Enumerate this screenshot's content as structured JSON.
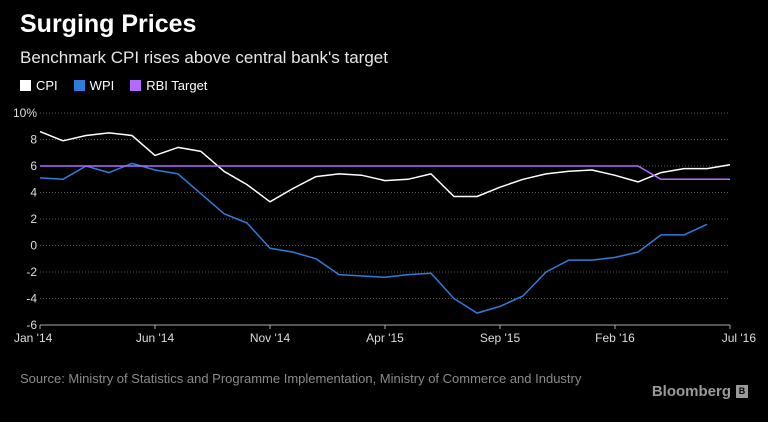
{
  "chart_data": {
    "type": "line",
    "title": "Surging Prices",
    "subtitle": "Benchmark CPI rises above central bank's target",
    "xlabel": "",
    "ylabel": "",
    "x_ticks": [
      "Jan '14",
      "Jun '14",
      "Nov '14",
      "Apr '15",
      "Sep '15",
      "Feb '16",
      "Jul '16"
    ],
    "x_range": [
      "2014-01",
      "2016-07"
    ],
    "y_ticks": [
      "10%",
      "8",
      "6",
      "4",
      "2",
      "0",
      "-2",
      "-4",
      "-6"
    ],
    "ylim": [
      -6,
      10
    ],
    "grid": true,
    "legend_position": "top-left",
    "series": [
      {
        "name": "CPI",
        "color": "#ffffff",
        "x": [
          "2014-01",
          "2014-02",
          "2014-03",
          "2014-04",
          "2014-05",
          "2014-06",
          "2014-07",
          "2014-08",
          "2014-09",
          "2014-10",
          "2014-11",
          "2014-12",
          "2015-01",
          "2015-02",
          "2015-03",
          "2015-04",
          "2015-05",
          "2015-06",
          "2015-07",
          "2015-08",
          "2015-09",
          "2015-10",
          "2015-11",
          "2015-12",
          "2016-01",
          "2016-02",
          "2016-03",
          "2016-04",
          "2016-05",
          "2016-06",
          "2016-07"
        ],
        "values": [
          8.6,
          7.9,
          8.3,
          8.5,
          8.3,
          6.8,
          7.4,
          7.1,
          5.6,
          4.6,
          3.3,
          4.3,
          5.2,
          5.4,
          5.3,
          4.9,
          5.0,
          5.4,
          3.7,
          3.7,
          4.4,
          5.0,
          5.4,
          5.6,
          5.7,
          5.3,
          4.8,
          5.5,
          5.8,
          5.8,
          6.1
        ]
      },
      {
        "name": "WPI",
        "color": "#2f7ddb",
        "x": [
          "2014-01",
          "2014-02",
          "2014-03",
          "2014-04",
          "2014-05",
          "2014-06",
          "2014-07",
          "2014-08",
          "2014-09",
          "2014-10",
          "2014-11",
          "2014-12",
          "2015-01",
          "2015-02",
          "2015-03",
          "2015-04",
          "2015-05",
          "2015-06",
          "2015-07",
          "2015-08",
          "2015-09",
          "2015-10",
          "2015-11",
          "2015-12",
          "2016-01",
          "2016-02",
          "2016-03",
          "2016-04",
          "2016-05",
          "2016-06"
        ],
        "values": [
          5.1,
          5.0,
          6.0,
          5.5,
          6.2,
          5.7,
          5.4,
          3.9,
          2.4,
          1.7,
          -0.2,
          -0.5,
          -1.0,
          -2.2,
          -2.3,
          -2.4,
          -2.2,
          -2.1,
          -4.0,
          -5.1,
          -4.6,
          -3.8,
          -2.0,
          -1.1,
          -1.1,
          -0.9,
          -0.5,
          0.8,
          0.8,
          1.6
        ]
      },
      {
        "name": "RBI Target",
        "color": "#b36bff",
        "x": [
          "2014-01",
          "2016-03",
          "2016-04",
          "2016-07"
        ],
        "values": [
          6,
          6,
          5,
          5
        ]
      }
    ]
  },
  "source_text": "Source: Ministry of Statistics and Programme Implementation, Ministry of Commerce and Industry",
  "brand": {
    "name": "Bloomberg",
    "icon_glyph": "B",
    "icon": "bloomberg-logo-icon"
  }
}
